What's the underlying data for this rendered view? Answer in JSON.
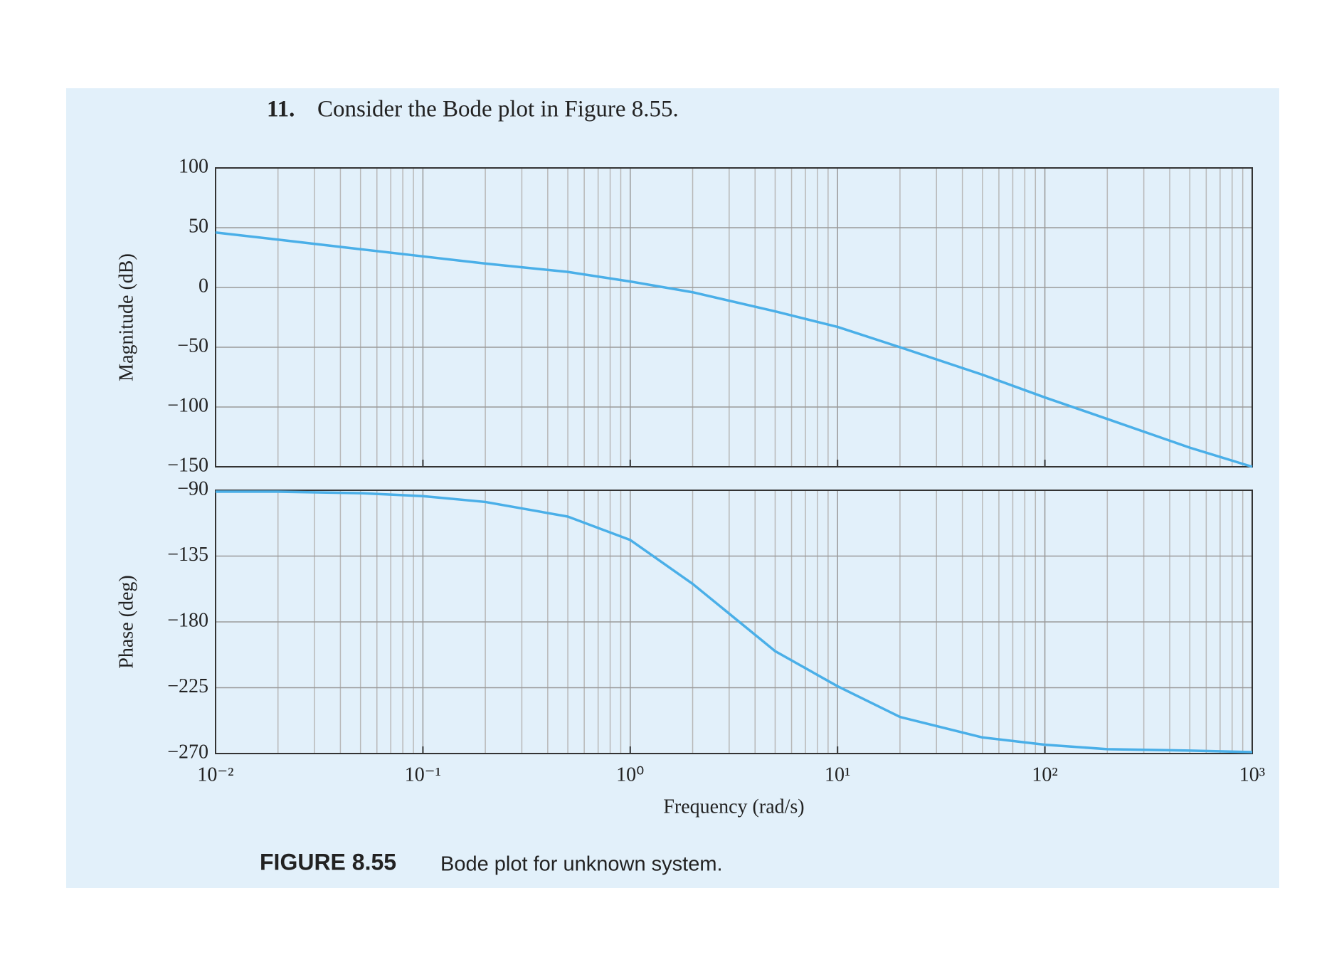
{
  "header": {
    "number": "11.",
    "text": "Consider the Bode plot in Figure 8.55."
  },
  "caption": {
    "label": "FIGURE 8.55",
    "text": "Bode plot for unknown system."
  },
  "chart_data": [
    {
      "type": "line",
      "ylabel": "Magnitude (dB)",
      "log_x": true,
      "grid": true,
      "xlim": [
        0.01,
        1000
      ],
      "xticks": [
        0.01,
        0.1,
        1,
        10,
        100,
        1000
      ],
      "ylim": [
        -150,
        100
      ],
      "yticks": [
        {
          "value": -150,
          "label": "−150"
        },
        {
          "value": -100,
          "label": "−100"
        },
        {
          "value": -50,
          "label": "−50"
        },
        0,
        50,
        100
      ],
      "x": [
        0.01,
        0.02,
        0.05,
        0.1,
        0.2,
        0.5,
        1,
        2,
        5,
        10,
        20,
        50,
        100,
        200,
        500,
        1000
      ],
      "values": [
        46,
        40,
        32,
        26,
        20,
        13,
        5,
        -4,
        -20,
        -33,
        -50,
        -73,
        -92,
        -110,
        -134,
        -150
      ],
      "color": "#4aafe8"
    },
    {
      "type": "line",
      "ylabel": "Phase (deg)",
      "xlabel": "Frequency (rad/s)",
      "log_x": true,
      "grid": true,
      "xlim": [
        0.01,
        1000
      ],
      "xticks": [
        {
          "value": 0.01,
          "label": "10⁻²"
        },
        {
          "value": 0.1,
          "label": "10⁻¹"
        },
        {
          "value": 1,
          "label": "10⁰"
        },
        {
          "value": 10,
          "label": "10¹"
        },
        {
          "value": 100,
          "label": "10²"
        },
        {
          "value": 1000,
          "label": "10³"
        }
      ],
      "ylim": [
        -270,
        -90
      ],
      "yticks": [
        {
          "value": -270,
          "label": "−270"
        },
        {
          "value": -225,
          "label": "−225"
        },
        {
          "value": -180,
          "label": "−180"
        },
        {
          "value": -135,
          "label": "−135"
        },
        {
          "value": -90,
          "label": "−90"
        }
      ],
      "x": [
        0.01,
        0.02,
        0.05,
        0.1,
        0.2,
        0.5,
        1,
        2,
        5,
        10,
        20,
        50,
        100,
        200,
        500,
        1000
      ],
      "values": [
        -91,
        -91,
        -92,
        -94,
        -98,
        -108,
        -124,
        -154,
        -200,
        -224,
        -245,
        -259,
        -264,
        -267,
        -268,
        -269
      ],
      "color": "#4aafe8"
    }
  ]
}
